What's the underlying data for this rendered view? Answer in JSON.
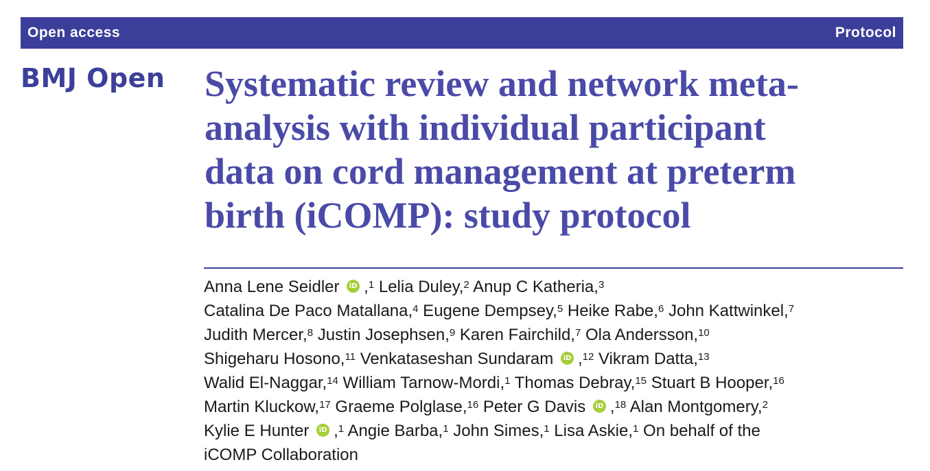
{
  "header": {
    "left_label": "Open access",
    "right_label": "Protocol",
    "bar_color": "#3c3f99"
  },
  "journal": {
    "name": "BMJ Open"
  },
  "title": {
    "lines": [
      "Systematic review and network meta-",
      "analysis with individual participant",
      "data on cord management at preterm",
      "birth (iCOMP): study protocol"
    ]
  },
  "orcid": {
    "glyph": "iD",
    "color": "#a6ce39"
  },
  "authors": {
    "lines": [
      {
        "parts": [
          {
            "t": "Anna Lene Seidler "
          },
          {
            "icon": "orcid-icon"
          },
          {
            "t": ","
          },
          {
            "sup": "1"
          },
          {
            "t": " Lelia Duley,"
          },
          {
            "sup": "2"
          },
          {
            "t": " Anup C Katheria,"
          },
          {
            "sup": "3"
          }
        ]
      },
      {
        "parts": [
          {
            "t": "Catalina De Paco Matallana,"
          },
          {
            "sup": "4"
          },
          {
            "t": " Eugene Dempsey,"
          },
          {
            "sup": "5"
          },
          {
            "t": " Heike Rabe,"
          },
          {
            "sup": "6"
          },
          {
            "t": " John Kattwinkel,"
          },
          {
            "sup": "7"
          }
        ]
      },
      {
        "parts": [
          {
            "t": "Judith Mercer,"
          },
          {
            "sup": "8"
          },
          {
            "t": " Justin Josephsen,"
          },
          {
            "sup": "9"
          },
          {
            "t": " Karen Fairchild,"
          },
          {
            "sup": "7"
          },
          {
            "t": " Ola Andersson,"
          },
          {
            "sup": "10"
          }
        ]
      },
      {
        "parts": [
          {
            "t": "Shigeharu Hosono,"
          },
          {
            "sup": "11"
          },
          {
            "t": " Venkataseshan Sundaram "
          },
          {
            "icon": "orcid-icon"
          },
          {
            "t": ","
          },
          {
            "sup": "12"
          },
          {
            "t": " Vikram Datta,"
          },
          {
            "sup": "13"
          }
        ]
      },
      {
        "parts": [
          {
            "t": "Walid El-Naggar,"
          },
          {
            "sup": "14"
          },
          {
            "t": " William Tarnow-Mordi,"
          },
          {
            "sup": "1"
          },
          {
            "t": " Thomas Debray,"
          },
          {
            "sup": "15"
          },
          {
            "t": " Stuart B Hooper,"
          },
          {
            "sup": "16"
          }
        ]
      },
      {
        "parts": [
          {
            "t": "Martin Kluckow,"
          },
          {
            "sup": "17"
          },
          {
            "t": " Graeme Polglase,"
          },
          {
            "sup": "16"
          },
          {
            "t": " Peter G Davis "
          },
          {
            "icon": "orcid-icon"
          },
          {
            "t": ","
          },
          {
            "sup": "18"
          },
          {
            "t": " Alan Montgomery,"
          },
          {
            "sup": "2"
          }
        ]
      },
      {
        "parts": [
          {
            "t": "Kylie E Hunter "
          },
          {
            "icon": "orcid-icon"
          },
          {
            "t": ","
          },
          {
            "sup": "1"
          },
          {
            "t": " Angie Barba,"
          },
          {
            "sup": "1"
          },
          {
            "t": " John Simes,"
          },
          {
            "sup": "1"
          },
          {
            "t": " Lisa Askie,"
          },
          {
            "sup": "1"
          },
          {
            "t": " On behalf of the"
          }
        ]
      },
      {
        "parts": [
          {
            "t": "iCOMP Collaboration"
          }
        ]
      }
    ]
  }
}
